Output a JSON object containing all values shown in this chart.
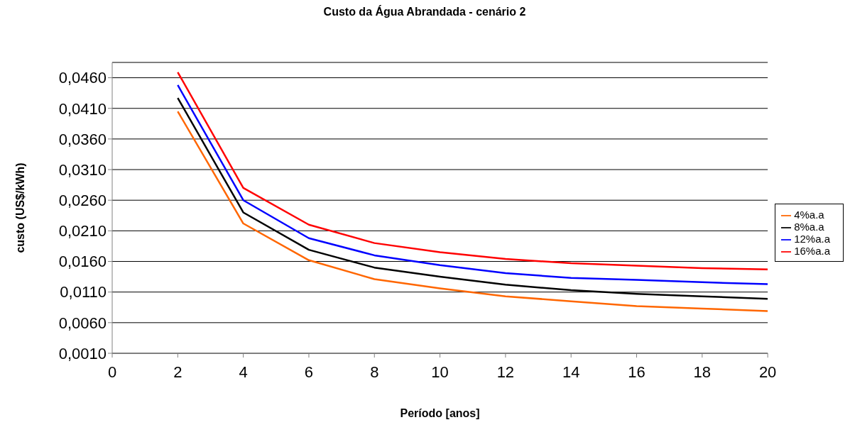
{
  "chart_data": {
    "type": "line",
    "title": "Custo da Água Abrandada - cenário 2",
    "xlabel": "Período [anos]",
    "ylabel": "custo (US$/kWh)",
    "x": [
      2,
      4,
      6,
      8,
      10,
      12,
      14,
      16,
      18,
      20
    ],
    "series": [
      {
        "name": "4%a.a",
        "color": "#ff6600",
        "values": [
          0.0405,
          0.0222,
          0.0162,
          0.0131,
          0.0116,
          0.0103,
          0.0095,
          0.0087,
          0.0083,
          0.0079
        ]
      },
      {
        "name": "8%a.a",
        "color": "#000000",
        "values": [
          0.0427,
          0.024,
          0.0179,
          0.015,
          0.0135,
          0.0122,
          0.0113,
          0.0107,
          0.0103,
          0.0099
        ]
      },
      {
        "name": "12%a.a",
        "color": "#0000ff",
        "values": [
          0.0448,
          0.026,
          0.0198,
          0.017,
          0.0154,
          0.0141,
          0.0133,
          0.013,
          0.0126,
          0.0123
        ]
      },
      {
        "name": "16%a.a",
        "color": "#ff0000",
        "values": [
          0.0469,
          0.028,
          0.022,
          0.019,
          0.0175,
          0.0164,
          0.0157,
          0.0153,
          0.0149,
          0.0147
        ]
      }
    ],
    "xlim": [
      0,
      20
    ],
    "xticks": [
      0,
      2,
      4,
      6,
      8,
      10,
      12,
      14,
      16,
      18,
      20
    ],
    "ylim": [
      0.001,
      0.0485
    ],
    "yticks": [
      {
        "value": 0.001,
        "label": "0,0010"
      },
      {
        "value": 0.006,
        "label": "0,0060"
      },
      {
        "value": 0.011,
        "label": "0,0110"
      },
      {
        "value": 0.016,
        "label": "0,0160"
      },
      {
        "value": 0.021,
        "label": "0,0210"
      },
      {
        "value": 0.026,
        "label": "0,0260"
      },
      {
        "value": 0.031,
        "label": "0,0310"
      },
      {
        "value": 0.036,
        "label": "0,0360"
      },
      {
        "value": 0.041,
        "label": "0,0410"
      },
      {
        "value": 0.046,
        "label": "0,0460"
      }
    ],
    "grid": "y",
    "legend": "right",
    "marker": "none",
    "line_style": "solid"
  }
}
